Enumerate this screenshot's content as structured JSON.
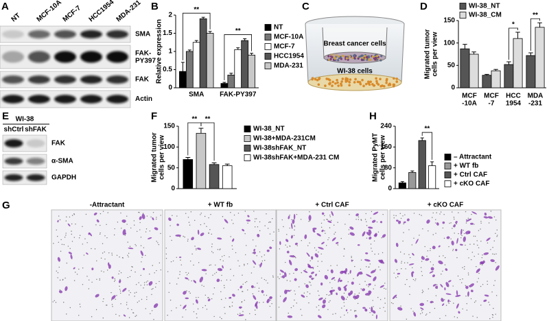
{
  "panel_letters": [
    "A",
    "B",
    "C",
    "D",
    "E",
    "F",
    "G",
    "H"
  ],
  "blot_A": {
    "columns": [
      "NT",
      "MCF-10A",
      "MCF-7",
      "HCC1954",
      "MDA-231"
    ],
    "rows": [
      "SMA",
      "FAK-\nPY397",
      "FAK",
      "Actin"
    ]
  },
  "diagram_C": {
    "labels": [
      "Breast cancer cells",
      "WI-38 cells"
    ]
  },
  "blot_E": {
    "group": "WI-38",
    "columns": [
      "shCtrl",
      "shFAK"
    ],
    "rows": [
      "FAK",
      "α-SMA",
      "GAPDH"
    ]
  },
  "images_G": {
    "titles": [
      "-Attractant",
      "+ WT fb",
      "+ Ctrl CAF",
      "+ cKO CAF"
    ]
  },
  "chart_data": [
    {
      "type": "bar",
      "y_label": "Relative expression",
      "categories": [
        "SMA",
        "FAK-PY397"
      ],
      "series": [
        {
          "name": "NT",
          "color": "#000000",
          "values": [
            0.45,
            0.12
          ],
          "errors": [
            0.25,
            0.03
          ]
        },
        {
          "name": "MCF-10A",
          "color": "#777777",
          "values": [
            1.0,
            0.35
          ],
          "errors": [
            0.04,
            0.05
          ]
        },
        {
          "name": "MCF-7",
          "color": "#ffffff",
          "values": [
            1.25,
            1.05
          ],
          "errors": [
            0.05,
            0.05
          ]
        },
        {
          "name": "HCC1954",
          "color": "#555555",
          "values": [
            1.9,
            1.3
          ],
          "errors": [
            0.04,
            0.05
          ]
        },
        {
          "name": "MDA-231",
          "color": "#c8c8c8",
          "values": [
            1.5,
            0.9
          ],
          "errors": [
            0.05,
            0.05
          ]
        }
      ],
      "ylim": [
        0,
        2
      ],
      "yticks": [
        0,
        0.5,
        1,
        1.5,
        2
      ],
      "annotations": [
        "**",
        "**"
      ]
    },
    {
      "type": "bar",
      "y_label": "Migrated tumor\ncells per view",
      "categories": [
        "MCF\n-10A",
        "MCF\n-7",
        "HCC\n1954",
        "MDA\n-231"
      ],
      "series": [
        {
          "name": "WI-38_NT",
          "color": "#555555",
          "values": [
            87,
            28,
            52,
            72
          ],
          "errors": [
            10,
            2,
            6,
            6
          ]
        },
        {
          "name": "WI-38_CM",
          "color": "#dddddd",
          "values": [
            75,
            38,
            110,
            135
          ],
          "errors": [
            5,
            3,
            14,
            10
          ]
        }
      ],
      "ylim": [
        0,
        150
      ],
      "yticks": [
        0,
        50,
        100,
        150
      ],
      "annotations": [
        "*",
        "**"
      ]
    },
    {
      "type": "bar",
      "y_label": "Migrated tumor\ncells per view",
      "series": [
        {
          "name": "WI-38_NT",
          "color": "#000000",
          "values": [
            70
          ],
          "errors": [
            5
          ]
        },
        {
          "name": "WI-38+MDA-231CM",
          "color": "#c8c8c8",
          "values": [
            133
          ],
          "errors": [
            12
          ]
        },
        {
          "name": "WI-38shFAK_NT",
          "color": "#555555",
          "values": [
            58
          ],
          "errors": [
            4
          ]
        },
        {
          "name": "WI-38shFAK+MDA-231 CM",
          "color": "#ffffff",
          "values": [
            55
          ],
          "errors": [
            4
          ]
        }
      ],
      "ylim": [
        0,
        150
      ],
      "yticks": [
        0,
        50,
        100,
        150
      ],
      "annotations": [
        "**",
        "**"
      ]
    },
    {
      "type": "bar",
      "y_label": "Migrated PyMT\ncells per view",
      "series": [
        {
          "name": "– Attractant",
          "color": "#000000",
          "values": [
            22
          ],
          "errors": [
            5
          ]
        },
        {
          "name": "+ WT fb",
          "color": "#999999",
          "values": [
            62
          ],
          "errors": [
            6
          ]
        },
        {
          "name": "+ Ctrl CAF",
          "color": "#555555",
          "values": [
            185
          ],
          "errors": [
            10
          ]
        },
        {
          "name": "+ cKO CAF",
          "color": "#ffffff",
          "values": [
            88
          ],
          "errors": [
            15
          ]
        }
      ],
      "ylim": [
        0,
        240
      ],
      "yticks": [
        0,
        80,
        160,
        240
      ],
      "annotations": [
        "**"
      ]
    }
  ]
}
